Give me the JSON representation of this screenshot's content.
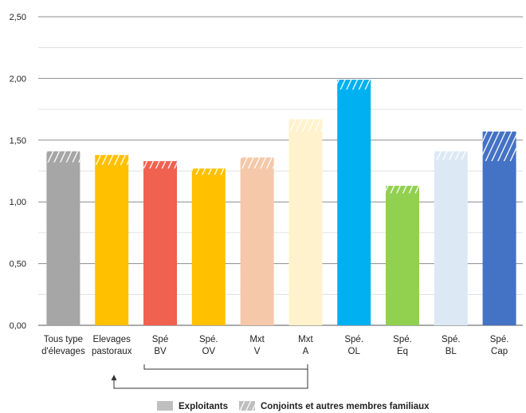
{
  "chart_data": {
    "type": "bar",
    "stacked": true,
    "ylim": [
      0,
      2.5
    ],
    "y_ticks": [
      "0,00",
      "0,50",
      "1,00",
      "1,50",
      "2,00",
      "2,50"
    ],
    "y_tick_values": [
      0,
      0.5,
      1.0,
      1.5,
      2.0,
      2.5
    ],
    "categories": [
      [
        "Tous type",
        "d'élevages"
      ],
      [
        "Elevages",
        "pastoraux"
      ],
      [
        "Spé",
        "BV"
      ],
      [
        "Spé.",
        "OV"
      ],
      [
        "Mxt",
        "V"
      ],
      [
        "Mxt",
        "A"
      ],
      [
        "Spé.",
        "OL"
      ],
      [
        "Spé.",
        "Eq"
      ],
      [
        "Spé.",
        "BL"
      ],
      [
        "Spé.",
        "Cap"
      ]
    ],
    "series": [
      {
        "name": "Exploitants",
        "values": [
          1.32,
          1.3,
          1.27,
          1.22,
          1.27,
          1.57,
          1.91,
          1.07,
          1.34,
          1.33
        ]
      },
      {
        "name": "Conjoints et autres membres familiaux",
        "values": [
          0.09,
          0.08,
          0.06,
          0.05,
          0.09,
          0.1,
          0.08,
          0.06,
          0.07,
          0.24
        ]
      }
    ],
    "colors": [
      "#a6a6a6",
      "#ffc000",
      "#f0614f",
      "#ffc000",
      "#f4c8a8",
      "#fff2cc",
      "#00b0f0",
      "#92d050",
      "#dce9f5",
      "#4472c4"
    ],
    "legend": [
      {
        "label": "Exploitants",
        "swatch": "solid",
        "color": "#bfbfbf"
      },
      {
        "label": "Conjoints et autres membres familiaux",
        "swatch": "hatched",
        "color": "#bfbfbf"
      }
    ],
    "legend_position": "bottom",
    "grid": true
  }
}
